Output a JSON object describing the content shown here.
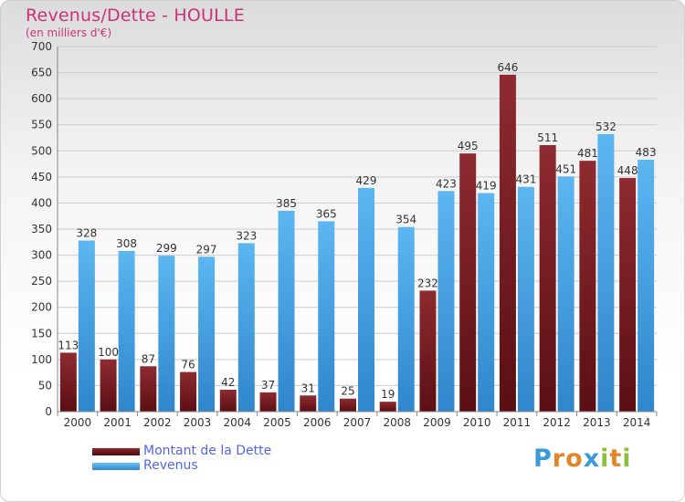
{
  "title": "Revenus/Dette - HOULLE",
  "subtitle": "(en milliers d'€)",
  "logo": {
    "letters": [
      "P",
      "r",
      "o",
      "x",
      "i",
      "t",
      "i"
    ],
    "colors": [
      "#3a9bd8",
      "#e2862a",
      "#e2862a",
      "#3a9bd8",
      "#8cbf3f",
      "#e2862a",
      "#8cbf3f"
    ]
  },
  "chart_data": {
    "type": "bar",
    "categories": [
      "2000",
      "2001",
      "2002",
      "2003",
      "2004",
      "2005",
      "2006",
      "2007",
      "2008",
      "2009",
      "2010",
      "2011",
      "2012",
      "2013",
      "2014"
    ],
    "series": [
      {
        "name": "Montant de la Dette",
        "color": "#7a1f24",
        "values": [
          113,
          100,
          87,
          76,
          42,
          37,
          31,
          25,
          19,
          232,
          495,
          646,
          511,
          481,
          448
        ]
      },
      {
        "name": "Revenus",
        "color": "#4ba6e8",
        "values": [
          328,
          308,
          299,
          297,
          323,
          385,
          365,
          429,
          354,
          423,
          419,
          431,
          451,
          532,
          483
        ]
      }
    ],
    "ylim": [
      0,
      700
    ],
    "yticks": [
      0,
      50,
      100,
      150,
      200,
      250,
      300,
      350,
      400,
      450,
      500,
      550,
      600,
      650,
      700
    ],
    "grid": true,
    "legend_position": "bottom-left"
  }
}
